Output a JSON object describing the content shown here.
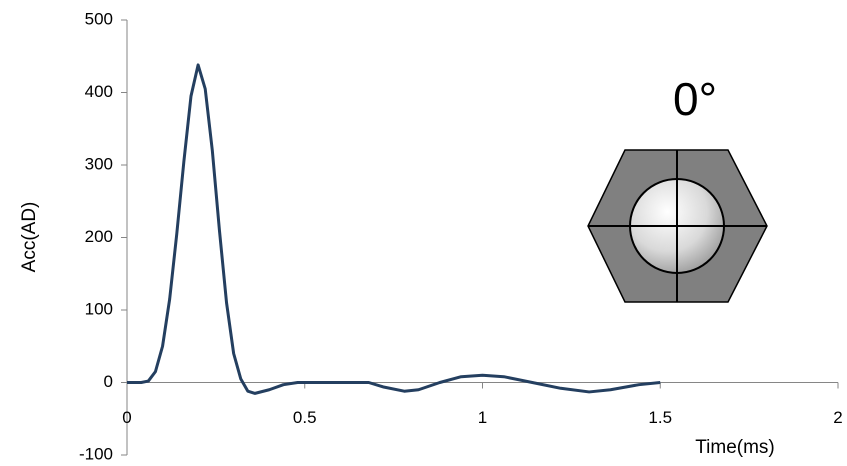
{
  "chart_data": {
    "type": "line",
    "x": [
      0,
      0.04,
      0.06,
      0.08,
      0.1,
      0.12,
      0.14,
      0.16,
      0.18,
      0.2,
      0.22,
      0.24,
      0.26,
      0.28,
      0.3,
      0.32,
      0.34,
      0.36,
      0.4,
      0.44,
      0.48,
      0.6,
      0.68,
      0.72,
      0.78,
      0.82,
      0.88,
      0.94,
      1.0,
      1.06,
      1.14,
      1.22,
      1.3,
      1.36,
      1.44,
      1.5
    ],
    "series": [
      {
        "color": "#243f60",
        "values": [
          0,
          0,
          2,
          15,
          50,
          115,
          205,
          305,
          395,
          438,
          405,
          320,
          210,
          110,
          40,
          5,
          -12,
          -15,
          -10,
          -3,
          0,
          0,
          0,
          -6,
          -12,
          -10,
          0,
          8,
          10,
          8,
          0,
          -8,
          -13,
          -10,
          -3,
          0
        ]
      }
    ],
    "xlim": [
      0,
      2
    ],
    "xticks": [
      0,
      0.5,
      1,
      1.5,
      2
    ],
    "ylim": [
      -100,
      500
    ],
    "yticks": [
      -100,
      0,
      100,
      200,
      300,
      400,
      500
    ],
    "x_label": "Time(ms)",
    "y_label": "Acc(AD)",
    "annotation": "0°",
    "grid": false
  }
}
